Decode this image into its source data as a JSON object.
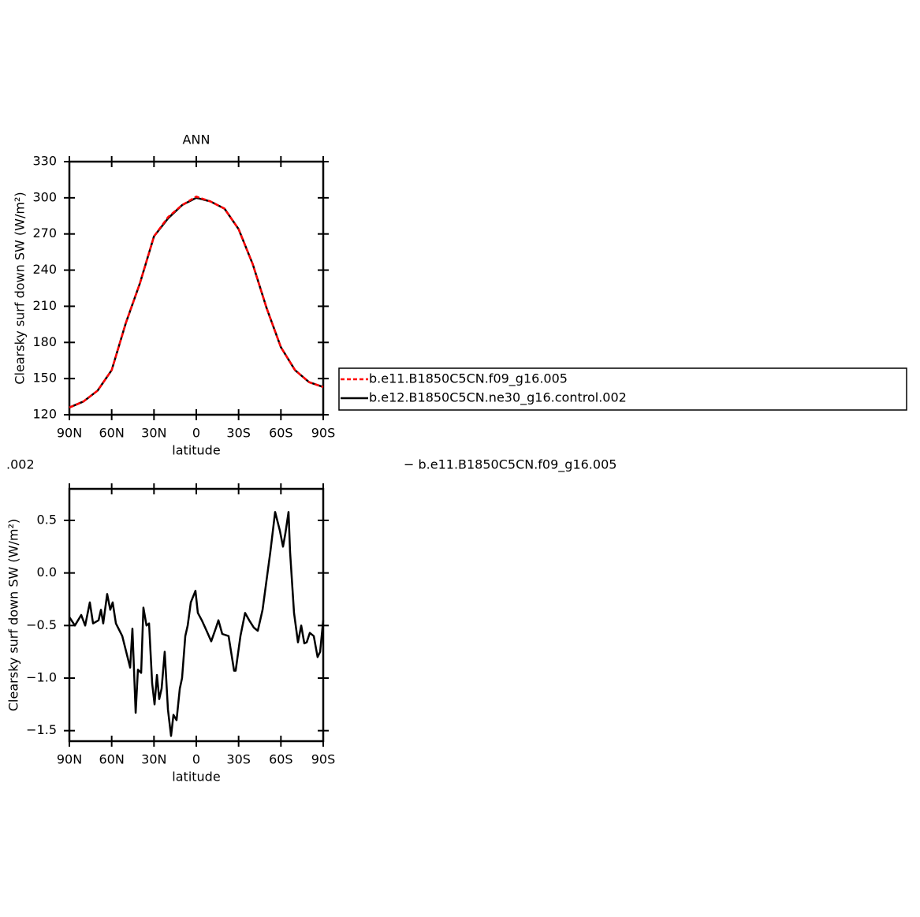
{
  "chart_data": [
    {
      "type": "line",
      "title": "ANN",
      "x_label": "latitude",
      "y_label": "Clearsky surf down SW (W/m²)",
      "x": [
        90,
        80,
        70,
        60,
        50,
        40,
        30,
        20,
        10,
        0,
        -10,
        -20,
        -30,
        -40,
        -50,
        -60,
        -70,
        -80,
        -90
      ],
      "series": [
        {
          "name": "b.e11.B1850C5CN.f09_g16.005",
          "color": "#ff0000",
          "dashed": true,
          "values": [
            126,
            131,
            140,
            157,
            196,
            229,
            268,
            284,
            294,
            301,
            297,
            291,
            274,
            245,
            208,
            176,
            157,
            147,
            143
          ]
        },
        {
          "name": "b.e12.B1850C5CN.ne30_g16.control.002",
          "color": "#000000",
          "dashed": false,
          "values": [
            126,
            131,
            140,
            157,
            196,
            229,
            268,
            283,
            294,
            300,
            297,
            291,
            274,
            245,
            208,
            176,
            157,
            147,
            143
          ]
        }
      ],
      "xlim": [
        90,
        -90
      ],
      "xticks": [
        {
          "value": 90,
          "label": "90N"
        },
        {
          "value": 60,
          "label": "60N"
        },
        {
          "value": 30,
          "label": "30N"
        },
        0,
        {
          "value": -30,
          "label": "30S"
        },
        {
          "value": -60,
          "label": "60S"
        },
        {
          "value": -90,
          "label": "90S"
        }
      ],
      "ylim": [
        120,
        330
      ],
      "yticks": [
        120,
        150,
        180,
        210,
        240,
        270,
        300,
        330
      ],
      "legend": "right"
    },
    {
      "type": "line",
      "x_label": "latitude",
      "y_label": "Clearsky surf down SW (W/m²)",
      "color": "#000000",
      "annotations": [
        ".002",
        "− b.e11.B1850C5CN.f09_g16.005"
      ],
      "x": [
        90,
        86.1,
        81.6,
        78.8,
        75.5,
        73.2,
        69.3,
        67.6,
        66.0,
        63.2,
        61.0,
        59.3,
        57.0,
        52.5,
        49.7,
        46.9,
        45.3,
        43.0,
        41.4,
        39.1,
        37.5,
        35.3,
        33.5,
        31.3,
        29.6,
        27.9,
        26.3,
        24.6,
        22.4,
        20.1,
        17.9,
        16.2,
        14.0,
        11.7,
        10.1,
        7.8,
        6.1,
        3.9,
        0.6,
        -1.1,
        -3.9,
        -7.3,
        -10.6,
        -14.0,
        -15.7,
        -18.4,
        -22.9,
        -26.8,
        -27.9,
        -31.3,
        -34.6,
        -37.5,
        -40.8,
        -43.6,
        -47.0,
        -52.5,
        -55.9,
        -59.3,
        -61.5,
        -63.2,
        -65.4,
        -66.5,
        -69.3,
        -72.1,
        -74.4,
        -76.6,
        -78.3,
        -80.5,
        -83.3,
        -86.0,
        -87.8,
        -90
      ],
      "values": [
        -0.42,
        -0.5,
        -0.4,
        -0.5,
        -0.28,
        -0.48,
        -0.45,
        -0.35,
        -0.48,
        -0.2,
        -0.35,
        -0.28,
        -0.48,
        -0.6,
        -0.75,
        -0.9,
        -0.53,
        -1.33,
        -0.92,
        -0.95,
        -0.33,
        -0.5,
        -0.48,
        -1.05,
        -1.25,
        -0.97,
        -1.2,
        -1.1,
        -0.75,
        -1.3,
        -1.55,
        -1.35,
        -1.4,
        -1.1,
        -1.0,
        -0.6,
        -0.5,
        -0.28,
        -0.17,
        -0.38,
        -0.45,
        -0.55,
        -0.65,
        -0.52,
        -0.45,
        -0.58,
        -0.6,
        -0.93,
        -0.93,
        -0.6,
        -0.38,
        -0.45,
        -0.52,
        -0.55,
        -0.35,
        0.2,
        0.58,
        0.4,
        0.25,
        0.38,
        0.58,
        0.2,
        -0.38,
        -0.66,
        -0.5,
        -0.67,
        -0.66,
        -0.57,
        -0.6,
        -0.8,
        -0.75,
        -0.45
      ],
      "xlim": [
        90,
        -90
      ],
      "xticks": [
        {
          "value": 90,
          "label": "90N"
        },
        {
          "value": 60,
          "label": "60N"
        },
        {
          "value": 30,
          "label": "30N"
        },
        0,
        {
          "value": -30,
          "label": "30S"
        },
        {
          "value": -60,
          "label": "60S"
        },
        {
          "value": -90,
          "label": "90S"
        }
      ],
      "ylim": [
        -1.6,
        0.8
      ],
      "yticks": [
        {
          "value": -1.5,
          "label": "−1.5"
        },
        {
          "value": -1.0,
          "label": "−1.0"
        },
        {
          "value": -0.5,
          "label": "−0.5"
        },
        {
          "value": 0,
          "label": "0.0"
        },
        0.5
      ]
    }
  ]
}
